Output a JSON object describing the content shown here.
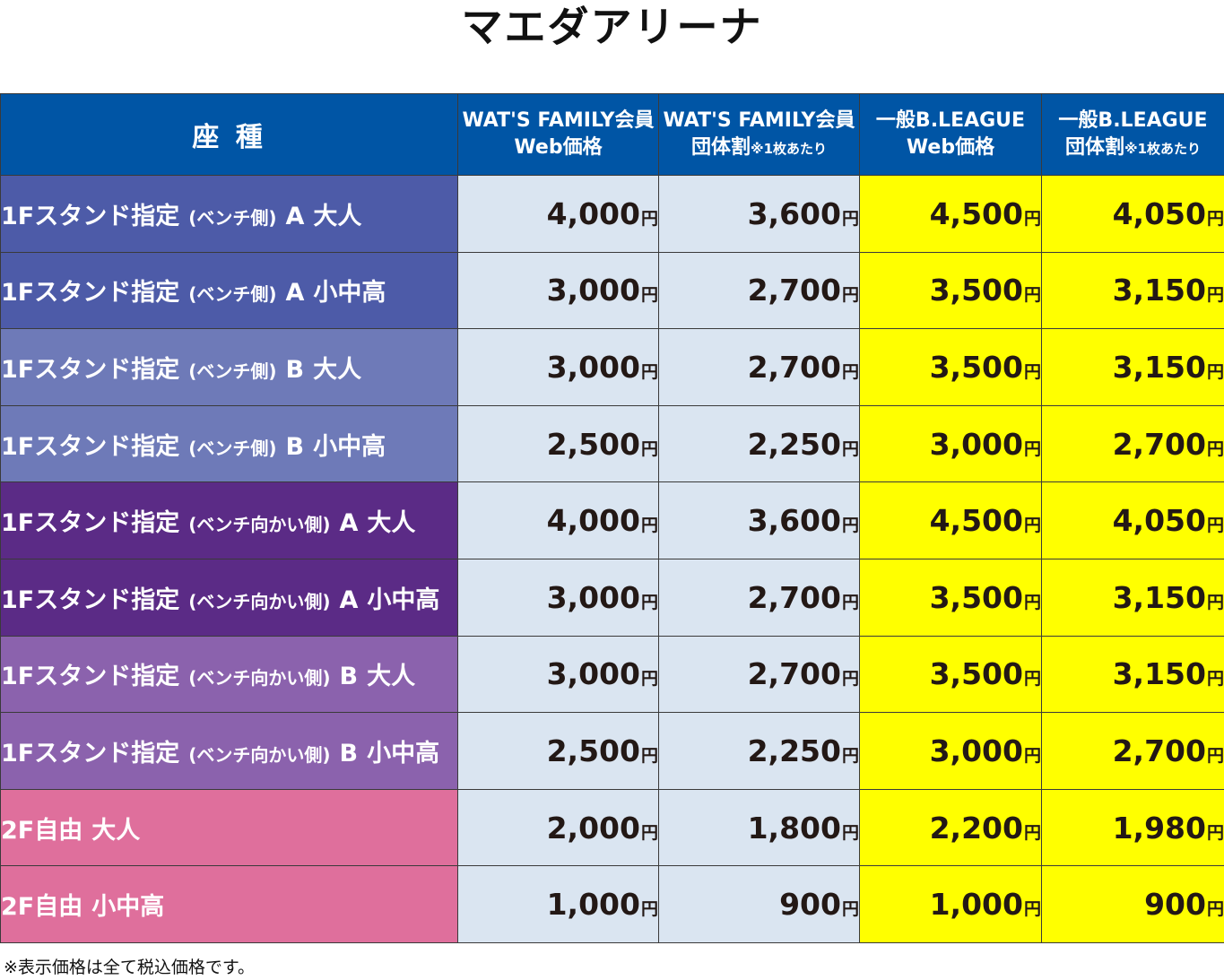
{
  "title": "マエダアリーナ",
  "colors": {
    "header_bg": "#0055a5",
    "member_cell_bg": "#dae5f1",
    "general_cell_bg": "#ffff00",
    "row_blue_dark": "#4d5ba8",
    "row_blue_light": "#6e7ab8",
    "row_purple_dark": "#5b2b86",
    "row_purple_light": "#8b62ad",
    "row_pink": "#df6f9c"
  },
  "header": {
    "seat": "座 種",
    "col1_line1": "WAT'S FAMILY会員",
    "col1_line2": "Web価格",
    "col2_line1": "WAT'S FAMILY会員",
    "col2_line2": "団体割",
    "col2_note": "※1枚あたり",
    "col3_line1": "一般B.LEAGUE",
    "col3_line2": "Web価格",
    "col4_line1": "一般B.LEAGUE",
    "col4_line2": "団体割",
    "col4_note": "※1枚あたり"
  },
  "yen": "円",
  "rows": [
    {
      "seat_main": "1Fスタンド指定",
      "seat_paren": "(ベンチ側)",
      "seat_grade": "A",
      "seat_age": "大人",
      "color": "#4d5ba8",
      "prices": [
        "4,000",
        "3,600",
        "4,500",
        "4,050"
      ]
    },
    {
      "seat_main": "1Fスタンド指定",
      "seat_paren": "(ベンチ側)",
      "seat_grade": "A",
      "seat_age": "小中高",
      "color": "#4d5ba8",
      "prices": [
        "3,000",
        "2,700",
        "3,500",
        "3,150"
      ]
    },
    {
      "seat_main": "1Fスタンド指定",
      "seat_paren": "(ベンチ側)",
      "seat_grade": "B",
      "seat_age": "大人",
      "color": "#6e7ab8",
      "prices": [
        "3,000",
        "2,700",
        "3,500",
        "3,150"
      ]
    },
    {
      "seat_main": "1Fスタンド指定",
      "seat_paren": "(ベンチ側)",
      "seat_grade": "B",
      "seat_age": "小中高",
      "color": "#6e7ab8",
      "prices": [
        "2,500",
        "2,250",
        "3,000",
        "2,700"
      ]
    },
    {
      "seat_main": "1Fスタンド指定",
      "seat_paren": "(ベンチ向かい側)",
      "seat_grade": "A",
      "seat_age": "大人",
      "color": "#5b2b86",
      "prices": [
        "4,000",
        "3,600",
        "4,500",
        "4,050"
      ]
    },
    {
      "seat_main": "1Fスタンド指定",
      "seat_paren": "(ベンチ向かい側)",
      "seat_grade": "A",
      "seat_age": "小中高",
      "color": "#5b2b86",
      "prices": [
        "3,000",
        "2,700",
        "3,500",
        "3,150"
      ]
    },
    {
      "seat_main": "1Fスタンド指定",
      "seat_paren": "(ベンチ向かい側)",
      "seat_grade": "B",
      "seat_age": "大人",
      "color": "#8b62ad",
      "prices": [
        "3,000",
        "2,700",
        "3,500",
        "3,150"
      ]
    },
    {
      "seat_main": "1Fスタンド指定",
      "seat_paren": "(ベンチ向かい側)",
      "seat_grade": "B",
      "seat_age": "小中高",
      "color": "#8b62ad",
      "prices": [
        "2,500",
        "2,250",
        "3,000",
        "2,700"
      ]
    },
    {
      "seat_main": "2F自由",
      "seat_paren": "",
      "seat_grade": "",
      "seat_age": "大人",
      "color": "#df6f9c",
      "prices": [
        "2,000",
        "1,800",
        "2,200",
        "1,980"
      ]
    },
    {
      "seat_main": "2F自由",
      "seat_paren": "",
      "seat_grade": "",
      "seat_age": "小中高",
      "color": "#df6f9c",
      "prices": [
        "1,000",
        "900",
        "1,000",
        "900"
      ]
    }
  ],
  "footnote": "※表示価格は全て税込価格です。"
}
